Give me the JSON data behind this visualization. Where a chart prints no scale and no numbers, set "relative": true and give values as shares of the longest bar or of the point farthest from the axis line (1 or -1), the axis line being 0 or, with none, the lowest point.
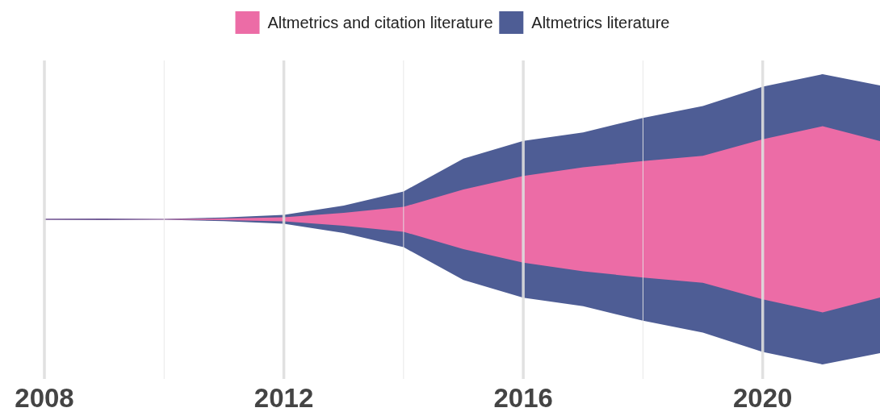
{
  "chart_data": {
    "type": "area",
    "stacked": true,
    "relative": true,
    "x": [
      2008,
      2009,
      2010,
      2011,
      2012,
      2013,
      2014,
      2015,
      2016,
      2017,
      2018,
      2019,
      2020,
      2021,
      2022
    ],
    "xlim": [
      2008,
      2022
    ],
    "xticks": [
      2008,
      {
        "value": 2010,
        "label": null
      },
      2012,
      {
        "value": 2014,
        "label": null
      },
      2016,
      {
        "value": 2018,
        "label": null
      },
      2020
    ],
    "series": [
      {
        "name": "Altmetrics and citation literature",
        "color": "#ec6ca6",
        "values": [
          0.001,
          0.002,
          0.001,
          0.006,
          0.014,
          0.045,
          0.086,
          0.206,
          0.298,
          0.359,
          0.401,
          0.437,
          0.552,
          0.641,
          0.535
        ]
      },
      {
        "name": "Altmetrics literature",
        "color": "#4e5d95",
        "values": [
          0.003,
          0.004,
          0.002,
          0.006,
          0.017,
          0.05,
          0.106,
          0.212,
          0.242,
          0.24,
          0.298,
          0.343,
          0.362,
          0.359,
          0.384
        ]
      }
    ],
    "grid": "x",
    "legend": "top"
  }
}
